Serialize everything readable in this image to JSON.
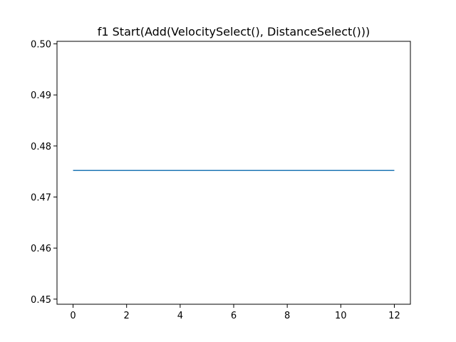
{
  "chart_data": {
    "type": "line",
    "title": "f1 Start(Add(VelocitySelect(), DistanceSelect()))",
    "xlabel": "",
    "ylabel": "",
    "xlim": [
      -0.6,
      12.6
    ],
    "ylim": [
      0.449,
      0.5005
    ],
    "xticks": [
      0,
      2,
      4,
      6,
      8,
      10,
      12
    ],
    "xtick_labels": [
      "0",
      "2",
      "4",
      "6",
      "8",
      "10",
      "12"
    ],
    "yticks": [
      0.45,
      0.46,
      0.47,
      0.48,
      0.49,
      0.5
    ],
    "ytick_labels": [
      "0.45",
      "0.46",
      "0.47",
      "0.48",
      "0.49",
      "0.50"
    ],
    "grid": false,
    "series": [
      {
        "color": "#1f77b4",
        "x": [
          0,
          1,
          2,
          3,
          4,
          5,
          6,
          7,
          8,
          9,
          10,
          11,
          12
        ],
        "y": [
          0.4752,
          0.4752,
          0.4752,
          0.4752,
          0.4752,
          0.4752,
          0.4752,
          0.4752,
          0.4752,
          0.4752,
          0.4752,
          0.4752,
          0.4752
        ]
      }
    ]
  }
}
